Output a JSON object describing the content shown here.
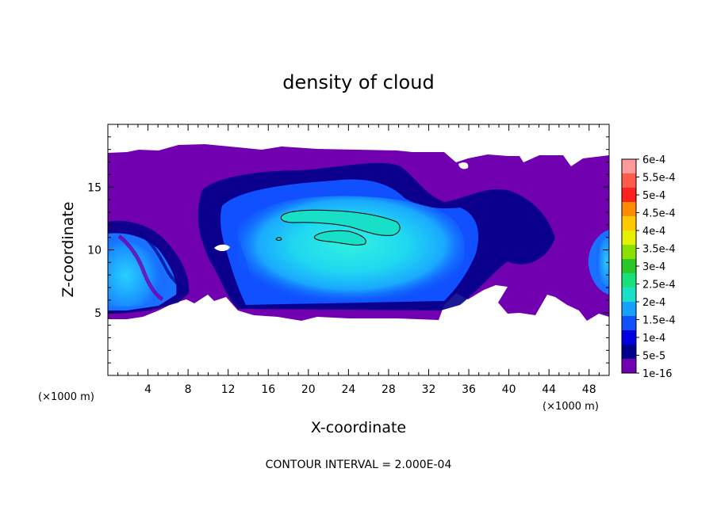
{
  "chart_data": {
    "type": "heatmap",
    "title": "density of cloud",
    "xlabel": "X-coordinate",
    "ylabel": "Z-coordinate",
    "x_unit": "(×1000 m)",
    "y_unit": "(×1000 m)",
    "xlim": [
      0,
      50
    ],
    "ylim": [
      0,
      20
    ],
    "x_ticks": [
      4,
      8,
      12,
      16,
      20,
      24,
      28,
      32,
      36,
      40,
      44,
      48
    ],
    "y_ticks": [
      5,
      10,
      15
    ],
    "colorbar": {
      "labels": [
        "6e-4",
        "5.5e-4",
        "5e-4",
        "4.5e-4",
        "4e-4",
        "3.5e-4",
        "3e-4",
        "2.5e-4",
        "2e-4",
        "1.5e-4",
        "1e-4",
        "5e-5",
        "1e-16"
      ],
      "colors": [
        "#ff9a9a",
        "#ff5a4a",
        "#ff2020",
        "#ff8c00",
        "#ffc800",
        "#e6f000",
        "#8ce000",
        "#28c828",
        "#18e07a",
        "#18e0c8",
        "#18a0ff",
        "#1050ff",
        "#0000e0",
        "#00008a",
        "#7000b0"
      ]
    },
    "cloud": {
      "base_z": 4.5,
      "top_z": 17.6,
      "max_region": {
        "x": [
          17,
          29
        ],
        "z": [
          11,
          13
        ]
      }
    },
    "contour_interval_text": "CONTOUR INTERVAL = 2.000E-04"
  }
}
